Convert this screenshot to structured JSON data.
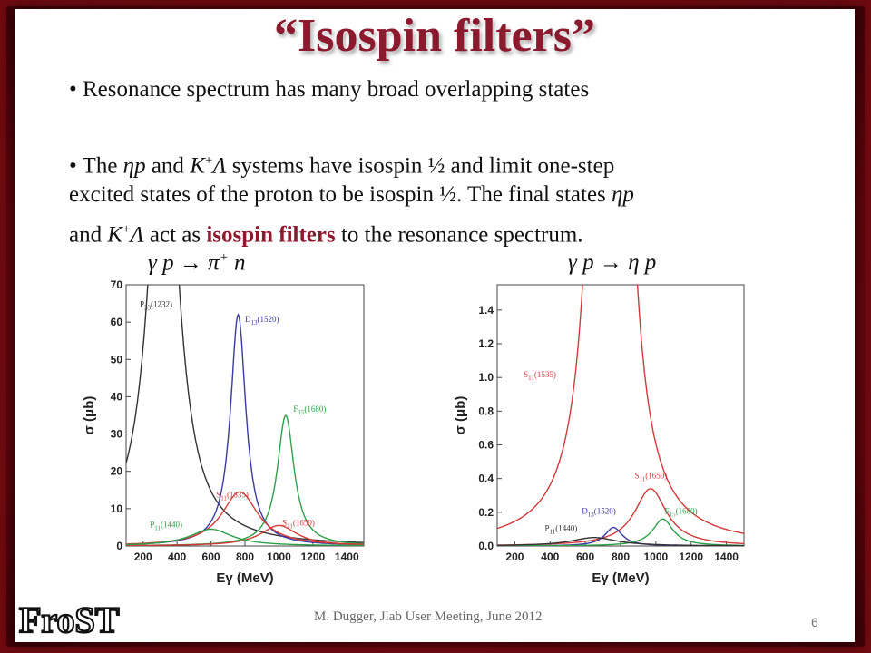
{
  "slide": {
    "title": "“Isospin filters”",
    "bullet1": "• Resonance spectrum has many broad overlapping states",
    "bullet2": {
      "line1_a": "• The ",
      "line1_eta": "ηp",
      "line1_b": " and ",
      "line1_k": "K",
      "line1_sup": "+",
      "line1_lam": "Λ",
      "line1_c": " systems have isospin ½ and limit one-step",
      "line2": "excited states of the proton to be isospin ½. The final states ",
      "line2_eta": "ηp",
      "line3_a": "and ",
      "line3_k": "K",
      "line3_sup": "+",
      "line3_lam": "Λ",
      "line3_b": " act as ",
      "line3_hl": "isospin filters",
      "line3_c": " to the resonance spectrum."
    },
    "reaction_left": "γ p → π",
    "reaction_left_sup": "+",
    "reaction_left_end": " n",
    "reaction_right": "γ p → η p",
    "footer": "M. Dugger, Jlab User Meeting, June 2012",
    "page_number": "6",
    "logo_text": "FroST"
  },
  "chart_data": [
    {
      "type": "line",
      "reaction": "γ p → π+ n",
      "xlabel": "Eγ (MeV)",
      "ylabel": "σ (μb)",
      "xlim": [
        100,
        1500
      ],
      "ylim": [
        0,
        70
      ],
      "xticks": [
        200,
        400,
        600,
        800,
        1000,
        1200,
        1400
      ],
      "yticks": [
        0,
        10,
        20,
        30,
        40,
        50,
        60,
        70
      ],
      "series": [
        {
          "name": "P33(1232)",
          "label_main": "P",
          "label_sub": "33",
          "label_mass": "(1232)",
          "color": "#333333",
          "peak_x": 320,
          "peak_y": 130,
          "width": 100,
          "label_x": 180,
          "label_y": 64
        },
        {
          "name": "D13(1520)",
          "label_main": "D",
          "label_sub": "13",
          "label_mass": "(1520)",
          "color": "#3a3aa0",
          "peak_x": 760,
          "peak_y": 62,
          "width": 55,
          "label_x": 800,
          "label_y": 60
        },
        {
          "name": "F15(1680)",
          "label_main": "F",
          "label_sub": "15",
          "label_mass": "(1680)",
          "color": "#2ea04a",
          "peak_x": 1040,
          "peak_y": 35,
          "width": 60,
          "label_x": 1085,
          "label_y": 36
        },
        {
          "name": "S11(1535)",
          "label_main": "S",
          "label_sub": "11",
          "label_mass": "(1535)",
          "color": "#d23a3a",
          "peak_x": 770,
          "peak_y": 14.5,
          "width": 130,
          "label_x": 630,
          "label_y": 13
        },
        {
          "name": "S11(1650)",
          "label_main": "S",
          "label_sub": "11",
          "label_mass": "(1650)",
          "color": "#d23a3a",
          "peak_x": 1000,
          "peak_y": 5.5,
          "width": 130,
          "label_x": 1020,
          "label_y": 5.5
        },
        {
          "name": "P11(1440)",
          "label_main": "P",
          "label_sub": "11",
          "label_mass": "(1440)",
          "color": "#2ea04a",
          "peak_x": 600,
          "peak_y": 4.5,
          "width": 150,
          "label_x": 240,
          "label_y": 5
        }
      ]
    },
    {
      "type": "line",
      "reaction": "γ p → η p",
      "xlabel": "Eγ (MeV)",
      "ylabel": "σ (μb)",
      "xlim": [
        100,
        1500
      ],
      "ylim": [
        0,
        1.55
      ],
      "xticks": [
        200,
        400,
        600,
        800,
        1000,
        1200,
        1400
      ],
      "yticks": [
        0.0,
        0.2,
        0.4,
        0.6,
        0.8,
        1.0,
        1.2,
        1.4
      ],
      "series": [
        {
          "name": "S11(1535)",
          "label_main": "S",
          "label_sub": "11",
          "label_mass": "(1535)",
          "color": "#d23a3a",
          "peak_x": 740,
          "peak_y": 12,
          "width": 60,
          "label_x": 250,
          "label_y": 1.0
        },
        {
          "name": "S11(1650)",
          "label_main": "S",
          "label_sub": "11",
          "label_mass": "(1650)",
          "color": "#d23a3a",
          "peak_x": 970,
          "peak_y": 0.34,
          "width": 110,
          "label_x": 880,
          "label_y": 0.4
        },
        {
          "name": "D13(1520)",
          "label_main": "D",
          "label_sub": "13",
          "label_mass": "(1520)",
          "color": "#3a3aa0",
          "peak_x": 760,
          "peak_y": 0.11,
          "width": 60,
          "label_x": 580,
          "label_y": 0.19
        },
        {
          "name": "F15(1680)",
          "label_main": "F",
          "label_sub": "15",
          "label_mass": "(1680)",
          "color": "#2ea04a",
          "peak_x": 1040,
          "peak_y": 0.16,
          "width": 70,
          "label_x": 1050,
          "label_y": 0.19
        },
        {
          "name": "P11(1440)",
          "label_main": "P",
          "label_sub": "11",
          "label_mass": "(1440)",
          "color": "#333333",
          "peak_x": 650,
          "peak_y": 0.05,
          "width": 160,
          "label_x": 370,
          "label_y": 0.09
        }
      ]
    }
  ]
}
